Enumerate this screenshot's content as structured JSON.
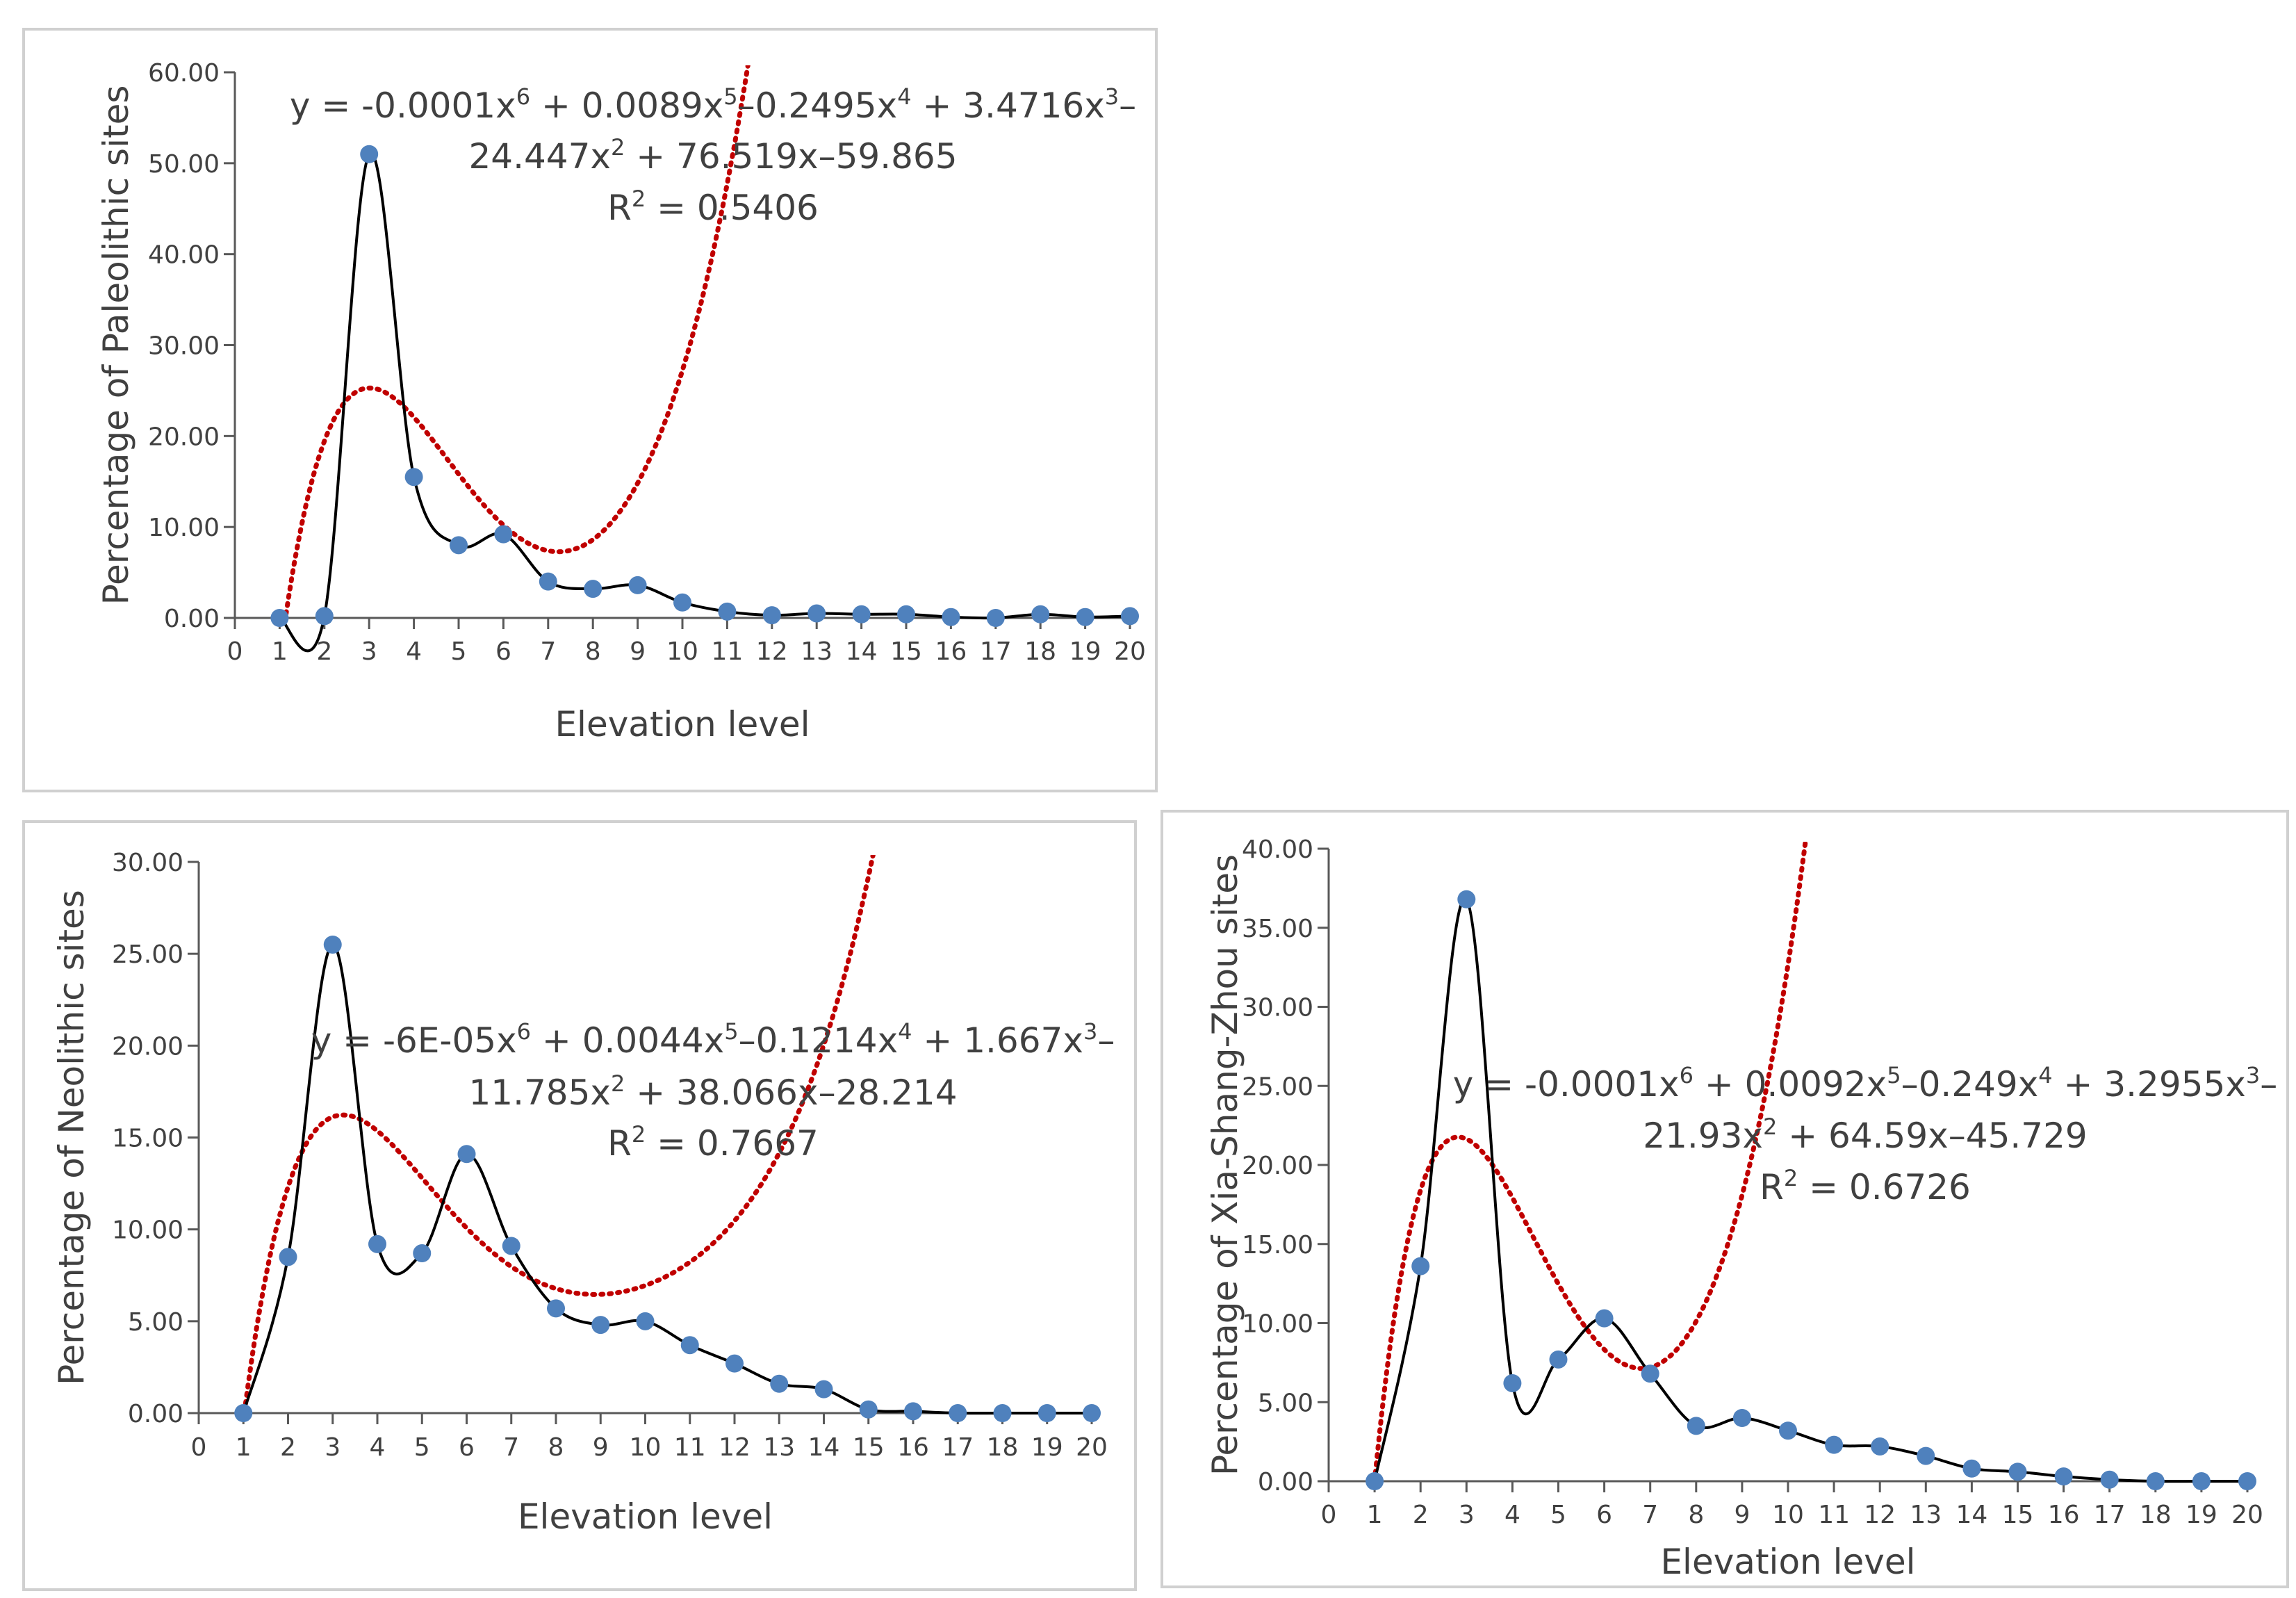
{
  "chart_data": [
    {
      "type": "scatter",
      "ylabel": "Percentage of Paleolithic sites",
      "xlabel": "Elevation level",
      "xlim": [
        0,
        20
      ],
      "ylim": [
        0,
        60
      ],
      "xticks": [
        "0",
        "1",
        "2",
        "3",
        "4",
        "5",
        "6",
        "7",
        "8",
        "9",
        "10",
        "11",
        "12",
        "13",
        "14",
        "15",
        "16",
        "17",
        "18",
        "19",
        "20"
      ],
      "yticks": [
        "0.00",
        "10.00",
        "20.00",
        "30.00",
        "40.00",
        "50.00",
        "60.00"
      ],
      "series": [
        {
          "name": "Paleolithic sites",
          "x": [
            1,
            2,
            3,
            4,
            5,
            6,
            7,
            8,
            9,
            10,
            11,
            12,
            13,
            14,
            15,
            16,
            17,
            18,
            19,
            20
          ],
          "values": [
            0,
            0.2,
            51,
            15.5,
            8,
            9.2,
            4,
            3.2,
            3.6,
            1.7,
            0.7,
            0.3,
            0.5,
            0.4,
            0.4,
            0.1,
            0,
            0.4,
            0.1,
            0.2
          ]
        }
      ],
      "trendline": {
        "type": "polynomial",
        "coef": [
          -59.865,
          76.519,
          -24.447,
          3.4716,
          -0.2495,
          0.0089,
          -0.0001
        ]
      },
      "equation_line1": "y = -0.0001x⁶ + 0.0089x⁵–0.2495x⁴ + 3.4716x³–",
      "equation_line2": "24.447x² + 76.519x–59.865",
      "r2": "R² = 0.5406"
    },
    {
      "type": "scatter",
      "ylabel": "Percentage of Neolithic sites",
      "xlabel": "Elevation level",
      "xlim": [
        0,
        20
      ],
      "ylim": [
        0,
        30
      ],
      "xticks": [
        "0",
        "1",
        "2",
        "3",
        "4",
        "5",
        "6",
        "7",
        "8",
        "9",
        "10",
        "11",
        "12",
        "13",
        "14",
        "15",
        "16",
        "17",
        "18",
        "19",
        "20"
      ],
      "yticks": [
        "0.00",
        "5.00",
        "10.00",
        "15.00",
        "20.00",
        "25.00",
        "30.00"
      ],
      "series": [
        {
          "name": "Neolithic sites",
          "x": [
            1,
            2,
            3,
            4,
            5,
            6,
            7,
            8,
            9,
            10,
            11,
            12,
            13,
            14,
            15,
            16,
            17,
            18,
            19,
            20
          ],
          "values": [
            0,
            8.5,
            25.5,
            9.2,
            8.7,
            14.1,
            9.1,
            5.7,
            4.8,
            5,
            3.7,
            2.7,
            1.6,
            1.3,
            0.2,
            0.1,
            0,
            0,
            0,
            0
          ]
        }
      ],
      "trendline": {
        "type": "polynomial",
        "coef": [
          -28.214,
          38.066,
          -11.785,
          1.667,
          -0.1214,
          0.0044,
          -6e-05
        ]
      },
      "equation_line1": "y = -6E-05x⁶ + 0.0044x⁵–0.1214x⁴ + 1.667x³–",
      "equation_line2": "11.785x² + 38.066x–28.214",
      "r2": "R² = 0.7667"
    },
    {
      "type": "scatter",
      "ylabel": "Percentage of Xia-Shang-Zhou sites",
      "xlabel": "Elevation level",
      "xlim": [
        0,
        20
      ],
      "ylim": [
        0,
        40
      ],
      "xticks": [
        "0",
        "1",
        "2",
        "3",
        "4",
        "5",
        "6",
        "7",
        "8",
        "9",
        "10",
        "11",
        "12",
        "13",
        "14",
        "15",
        "16",
        "17",
        "18",
        "19",
        "20"
      ],
      "yticks": [
        "0.00",
        "5.00",
        "10.00",
        "15.00",
        "20.00",
        "25.00",
        "30.00",
        "35.00",
        "40.00"
      ],
      "series": [
        {
          "name": "Xia-Shang-Zhou sites",
          "x": [
            1,
            2,
            3,
            4,
            5,
            6,
            7,
            8,
            9,
            10,
            11,
            12,
            13,
            14,
            15,
            16,
            17,
            18,
            19,
            20
          ],
          "values": [
            0,
            13.6,
            36.8,
            6.2,
            7.7,
            10.3,
            6.8,
            3.5,
            4,
            3.2,
            2.3,
            2.2,
            1.6,
            0.8,
            0.6,
            0.3,
            0.1,
            0,
            0,
            0
          ]
        }
      ],
      "trendline": {
        "type": "polynomial",
        "coef": [
          -45.729,
          64.59,
          -21.93,
          3.2955,
          -0.249,
          0.0092,
          -0.0001
        ]
      },
      "equation_line1": "y = -0.0001x⁶ + 0.0092x⁵–0.249x⁴ + 3.2955x³–",
      "equation_line2": "21.93x² + 64.59x–45.729",
      "r2": "R² = 0.6726"
    }
  ],
  "colors": {
    "marker": "#4f81bd",
    "line": "#000000",
    "trend": "#c00000",
    "axis": "#595959",
    "text": "#404040"
  }
}
